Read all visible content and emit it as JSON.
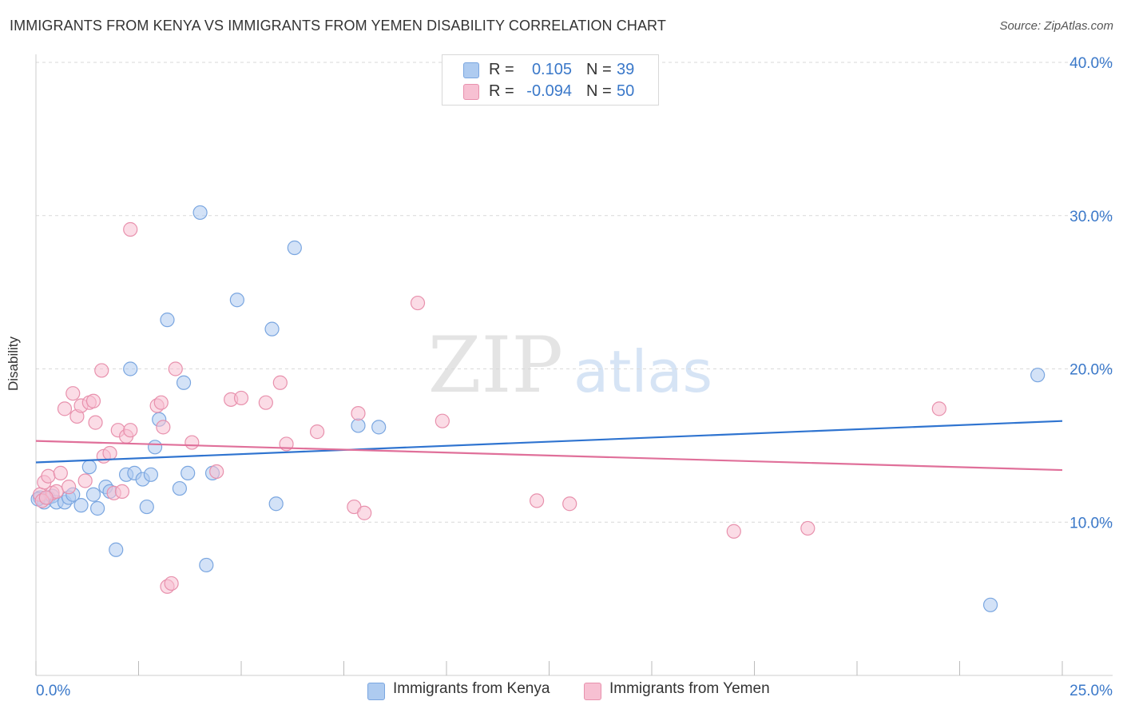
{
  "title": "IMMIGRANTS FROM KENYA VS IMMIGRANTS FROM YEMEN DISABILITY CORRELATION CHART",
  "source": "Source: ZipAtlas.com",
  "legend_top": [
    {
      "r_label": "R =",
      "r_value": "0.105",
      "n_label": "N =",
      "n_value": "39",
      "color": "#aecbf0",
      "border": "#7aa6e0"
    },
    {
      "r_label": "R =",
      "r_value": "-0.094",
      "n_label": "N =",
      "n_value": "50",
      "color": "#f7c0d2",
      "border": "#e891ad"
    }
  ],
  "chart_data": {
    "type": "scatter",
    "title": "IMMIGRANTS FROM KENYA VS IMMIGRANTS FROM YEMEN DISABILITY CORRELATION CHART",
    "xlabel": "",
    "ylabel": "Disability",
    "xlim": [
      0,
      25
    ],
    "ylim": [
      0,
      40
    ],
    "x_tick_labels": [
      "0.0%",
      "25.0%"
    ],
    "y_ticks": [
      10,
      20,
      30,
      40
    ],
    "y_tick_labels": [
      "10.0%",
      "20.0%",
      "30.0%",
      "40.0%"
    ],
    "grid": true,
    "legend_position": "bottom",
    "series": [
      {
        "name": "Immigrants from Kenya",
        "color": "#7aa6e0",
        "fill": "#aecbf0",
        "line_color": "#2f74d0",
        "trend": [
          [
            0,
            13.9
          ],
          [
            25,
            16.6
          ]
        ],
        "points": [
          [
            0.1,
            11.6
          ],
          [
            0.2,
            11.3
          ],
          [
            0.3,
            11.6
          ],
          [
            0.4,
            11.7
          ],
          [
            0.5,
            11.3
          ],
          [
            0.7,
            11.3
          ],
          [
            0.8,
            11.6
          ],
          [
            0.9,
            11.8
          ],
          [
            1.1,
            11.1
          ],
          [
            1.3,
            13.6
          ],
          [
            1.4,
            11.8
          ],
          [
            1.5,
            10.9
          ],
          [
            1.7,
            12.3
          ],
          [
            1.8,
            12.0
          ],
          [
            1.95,
            8.2
          ],
          [
            2.2,
            13.1
          ],
          [
            2.3,
            20.0
          ],
          [
            2.4,
            13.2
          ],
          [
            2.6,
            12.8
          ],
          [
            2.7,
            11.0
          ],
          [
            2.8,
            13.1
          ],
          [
            2.9,
            14.9
          ],
          [
            3.0,
            16.7
          ],
          [
            3.2,
            23.2
          ],
          [
            3.5,
            12.2
          ],
          [
            3.6,
            19.1
          ],
          [
            3.7,
            13.2
          ],
          [
            4.0,
            30.2
          ],
          [
            4.15,
            7.2
          ],
          [
            4.3,
            13.2
          ],
          [
            4.9,
            24.5
          ],
          [
            5.75,
            22.6
          ],
          [
            5.85,
            11.2
          ],
          [
            6.3,
            27.9
          ],
          [
            7.85,
            16.3
          ],
          [
            8.35,
            16.2
          ],
          [
            24.4,
            19.6
          ],
          [
            23.25,
            4.6
          ],
          [
            0.05,
            11.5
          ]
        ]
      },
      {
        "name": "Immigrants from Yemen",
        "color": "#e891ad",
        "fill": "#f7c0d2",
        "line_color": "#e0709a",
        "trend": [
          [
            0,
            15.3
          ],
          [
            25,
            13.4
          ]
        ],
        "points": [
          [
            0.1,
            11.8
          ],
          [
            0.2,
            12.6
          ],
          [
            0.3,
            13.0
          ],
          [
            0.4,
            11.9
          ],
          [
            0.5,
            12.0
          ],
          [
            0.6,
            13.2
          ],
          [
            0.7,
            17.4
          ],
          [
            0.8,
            12.3
          ],
          [
            0.9,
            18.4
          ],
          [
            1.0,
            16.9
          ],
          [
            1.1,
            17.6
          ],
          [
            1.2,
            12.7
          ],
          [
            1.3,
            17.8
          ],
          [
            1.4,
            17.9
          ],
          [
            1.45,
            16.5
          ],
          [
            1.6,
            19.9
          ],
          [
            1.65,
            14.3
          ],
          [
            1.8,
            14.5
          ],
          [
            1.9,
            11.9
          ],
          [
            2.0,
            16.0
          ],
          [
            2.1,
            12.0
          ],
          [
            2.2,
            15.6
          ],
          [
            2.3,
            16.0
          ],
          [
            2.3,
            29.1
          ],
          [
            2.95,
            17.6
          ],
          [
            3.05,
            17.8
          ],
          [
            3.1,
            16.2
          ],
          [
            3.2,
            5.8
          ],
          [
            3.3,
            6.0
          ],
          [
            3.4,
            20.0
          ],
          [
            3.8,
            15.2
          ],
          [
            4.4,
            13.3
          ],
          [
            4.75,
            18.0
          ],
          [
            5.0,
            18.1
          ],
          [
            5.6,
            17.8
          ],
          [
            5.95,
            19.1
          ],
          [
            6.1,
            15.1
          ],
          [
            6.85,
            15.9
          ],
          [
            7.75,
            11.0
          ],
          [
            7.85,
            17.1
          ],
          [
            8.0,
            10.6
          ],
          [
            9.3,
            24.3
          ],
          [
            9.9,
            16.6
          ],
          [
            12.2,
            11.4
          ],
          [
            13.0,
            11.2
          ],
          [
            17.0,
            9.4
          ],
          [
            18.8,
            9.6
          ],
          [
            22.0,
            17.4
          ],
          [
            0.15,
            11.4
          ],
          [
            0.25,
            11.6
          ]
        ]
      }
    ]
  },
  "axes": {
    "y_label": "Disability",
    "x_min_label": "0.0%",
    "x_max_label": "25.0%"
  },
  "watermark": {
    "part1": "ZIP",
    "part2": "atlas"
  }
}
